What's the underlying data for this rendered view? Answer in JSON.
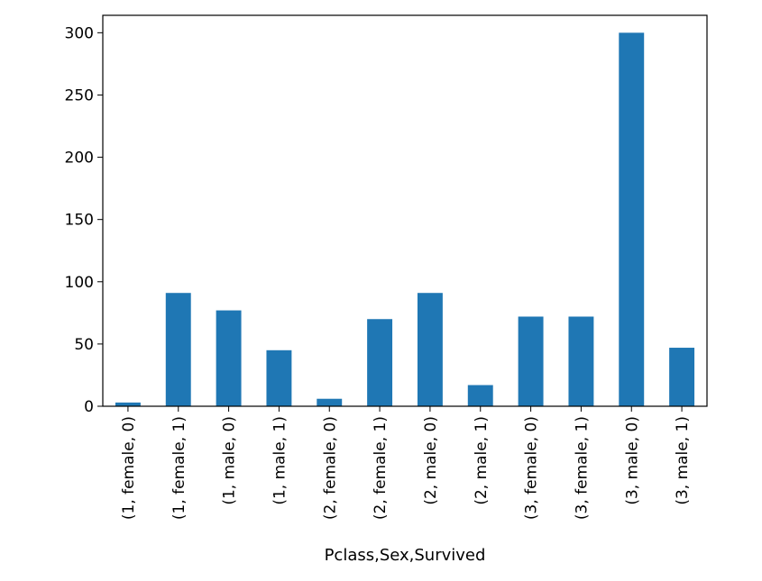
{
  "chart_data": {
    "type": "bar",
    "xlabel": "Pclass,Sex,Survived",
    "ylabel": "",
    "title": "",
    "categories": [
      "(1, female, 0)",
      "(1, female, 1)",
      "(1, male, 0)",
      "(1, male, 1)",
      "(2, female, 0)",
      "(2, female, 1)",
      "(2, male, 0)",
      "(2, male, 1)",
      "(3, female, 0)",
      "(3, female, 1)",
      "(3, male, 0)",
      "(3, male, 1)"
    ],
    "values": [
      3,
      91,
      77,
      45,
      6,
      70,
      91,
      17,
      72,
      72,
      300,
      47
    ],
    "ylim": [
      0,
      314
    ],
    "yticks": [
      0,
      50,
      100,
      150,
      200,
      250,
      300
    ],
    "bar_color": "#1f77b4",
    "grid": false,
    "legend": "none"
  }
}
